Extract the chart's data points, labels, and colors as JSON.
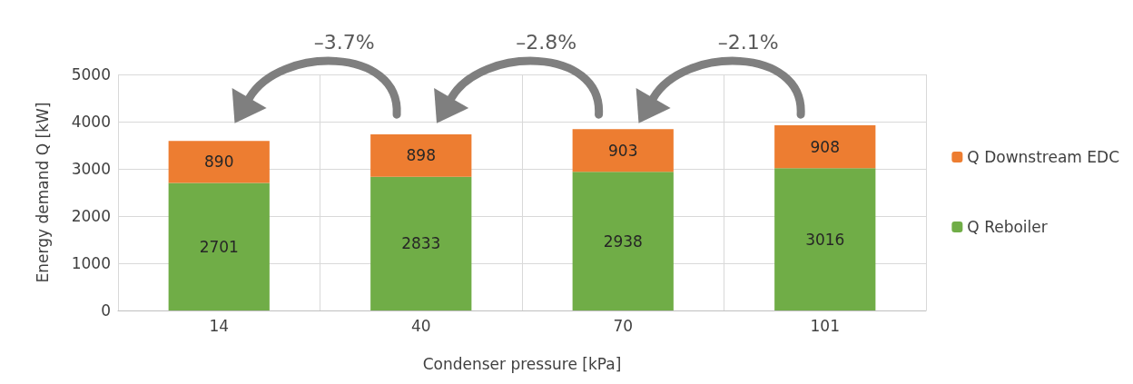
{
  "chart_data": {
    "type": "bar",
    "stacked": true,
    "xlabel": "Condenser pressure [kPa]",
    "ylabel": "Energy demand Q [kW]",
    "categories": [
      "14",
      "40",
      "70",
      "101"
    ],
    "series": [
      {
        "name": "Q Reboiler",
        "color": "#70ad47",
        "values": [
          2701,
          2833,
          2938,
          3016
        ]
      },
      {
        "name": "Q Downstream EDC",
        "color": "#ed7d31",
        "values": [
          890,
          898,
          903,
          908
        ]
      }
    ],
    "ylim": [
      0,
      5000
    ],
    "yticks": [
      0,
      1000,
      2000,
      3000,
      4000,
      5000
    ],
    "grid": true,
    "legend": "right",
    "data_labels": true,
    "annotations": [
      "–3.7%",
      "–2.8%",
      "–2.1%"
    ]
  }
}
